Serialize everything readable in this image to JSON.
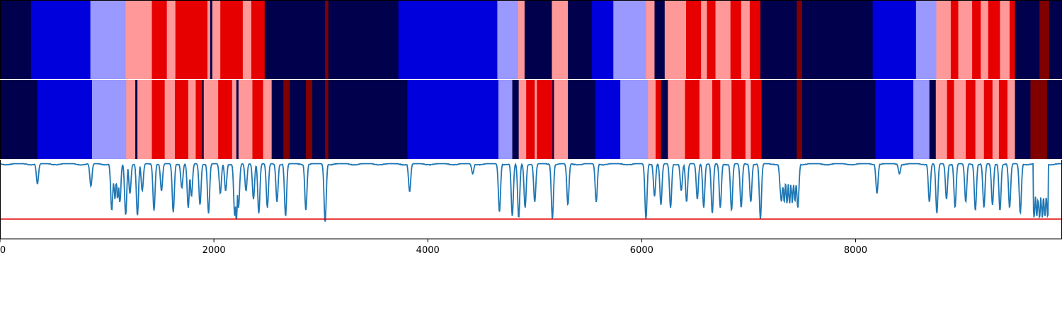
{
  "chart_data": [
    {
      "type": "heatmap",
      "panel": "segment-strip-1",
      "xlim": [
        0,
        9930
      ],
      "color_scale": [
        "#00004d",
        "#0000dd",
        "#9999ff",
        "#ff9999",
        "#e60000",
        "#800000"
      ],
      "segments": [
        [
          0,
          290,
          0
        ],
        [
          290,
          845,
          1
        ],
        [
          845,
          1175,
          2
        ],
        [
          1175,
          1420,
          3
        ],
        [
          1420,
          1560,
          4
        ],
        [
          1560,
          1640,
          3
        ],
        [
          1640,
          1940,
          4
        ],
        [
          1940,
          1965,
          3
        ],
        [
          1965,
          1985,
          0
        ],
        [
          1985,
          2060,
          3
        ],
        [
          2060,
          2270,
          4
        ],
        [
          2270,
          2350,
          3
        ],
        [
          2350,
          2475,
          4
        ],
        [
          2475,
          3040,
          0
        ],
        [
          3040,
          3070,
          5
        ],
        [
          3070,
          3725,
          0
        ],
        [
          3725,
          4650,
          1
        ],
        [
          4650,
          4845,
          2
        ],
        [
          4845,
          4905,
          3
        ],
        [
          4905,
          5160,
          0
        ],
        [
          5160,
          5310,
          3
        ],
        [
          5310,
          5535,
          0
        ],
        [
          5535,
          5735,
          1
        ],
        [
          5735,
          6040,
          2
        ],
        [
          6040,
          6120,
          3
        ],
        [
          6120,
          6215,
          0
        ],
        [
          6215,
          6415,
          3
        ],
        [
          6415,
          6555,
          4
        ],
        [
          6555,
          6610,
          3
        ],
        [
          6610,
          6690,
          4
        ],
        [
          6690,
          6830,
          3
        ],
        [
          6830,
          6930,
          4
        ],
        [
          6930,
          7010,
          3
        ],
        [
          7010,
          7110,
          4
        ],
        [
          7110,
          7450,
          0
        ],
        [
          7450,
          7500,
          5
        ],
        [
          7500,
          8160,
          0
        ],
        [
          8160,
          8565,
          1
        ],
        [
          8565,
          8755,
          2
        ],
        [
          8755,
          8890,
          3
        ],
        [
          8890,
          8960,
          4
        ],
        [
          8960,
          9090,
          3
        ],
        [
          9090,
          9170,
          4
        ],
        [
          9170,
          9240,
          3
        ],
        [
          9240,
          9350,
          4
        ],
        [
          9350,
          9440,
          3
        ],
        [
          9440,
          9490,
          4
        ],
        [
          9490,
          9720,
          0
        ],
        [
          9720,
          9810,
          5
        ],
        [
          9810,
          9930,
          0
        ]
      ]
    },
    {
      "type": "heatmap",
      "panel": "segment-strip-2",
      "xlim": [
        0,
        9930
      ],
      "color_scale": [
        "#00004d",
        "#0000dd",
        "#9999ff",
        "#ff9999",
        "#e60000",
        "#800000"
      ],
      "segments": [
        [
          0,
          350,
          0
        ],
        [
          350,
          860,
          1
        ],
        [
          860,
          1180,
          2
        ],
        [
          1180,
          1265,
          3
        ],
        [
          1265,
          1285,
          0
        ],
        [
          1285,
          1420,
          3
        ],
        [
          1420,
          1540,
          4
        ],
        [
          1540,
          1635,
          3
        ],
        [
          1635,
          1760,
          4
        ],
        [
          1760,
          1830,
          3
        ],
        [
          1830,
          1890,
          4
        ],
        [
          1890,
          1905,
          0
        ],
        [
          1905,
          2040,
          3
        ],
        [
          2040,
          2170,
          4
        ],
        [
          2170,
          2210,
          3
        ],
        [
          2210,
          2230,
          0
        ],
        [
          2230,
          2360,
          3
        ],
        [
          2360,
          2460,
          4
        ],
        [
          2460,
          2540,
          3
        ],
        [
          2540,
          2650,
          0
        ],
        [
          2650,
          2710,
          5
        ],
        [
          2710,
          2860,
          0
        ],
        [
          2860,
          2920,
          5
        ],
        [
          2920,
          3040,
          0
        ],
        [
          3040,
          3070,
          5
        ],
        [
          3070,
          3810,
          0
        ],
        [
          3810,
          4660,
          1
        ],
        [
          4660,
          4790,
          2
        ],
        [
          4790,
          4850,
          0
        ],
        [
          4850,
          4920,
          3
        ],
        [
          4920,
          5000,
          4
        ],
        [
          5000,
          5020,
          3
        ],
        [
          5020,
          5165,
          4
        ],
        [
          5165,
          5180,
          0
        ],
        [
          5180,
          5310,
          3
        ],
        [
          5310,
          5565,
          0
        ],
        [
          5565,
          5800,
          1
        ],
        [
          5800,
          6060,
          2
        ],
        [
          6060,
          6130,
          3
        ],
        [
          6130,
          6180,
          4
        ],
        [
          6180,
          6245,
          0
        ],
        [
          6245,
          6405,
          3
        ],
        [
          6405,
          6540,
          4
        ],
        [
          6540,
          6660,
          3
        ],
        [
          6660,
          6735,
          4
        ],
        [
          6735,
          6840,
          3
        ],
        [
          6840,
          6970,
          4
        ],
        [
          6970,
          7020,
          3
        ],
        [
          7020,
          7120,
          4
        ],
        [
          7120,
          7450,
          0
        ],
        [
          7450,
          7500,
          5
        ],
        [
          7500,
          8185,
          0
        ],
        [
          8185,
          8540,
          1
        ],
        [
          8540,
          8690,
          2
        ],
        [
          8690,
          8750,
          0
        ],
        [
          8750,
          8855,
          3
        ],
        [
          8855,
          8920,
          4
        ],
        [
          8920,
          9030,
          3
        ],
        [
          9030,
          9120,
          4
        ],
        [
          9120,
          9200,
          3
        ],
        [
          9200,
          9280,
          4
        ],
        [
          9280,
          9340,
          3
        ],
        [
          9340,
          9420,
          4
        ],
        [
          9420,
          9490,
          3
        ],
        [
          9490,
          9635,
          0
        ],
        [
          9635,
          9790,
          5
        ],
        [
          9790,
          9930,
          0
        ]
      ]
    },
    {
      "type": "line",
      "panel": "signal-line",
      "xlim": [
        0,
        9930
      ],
      "ylim": [
        -0.35,
        1.05
      ],
      "line_color": "#1f77b4",
      "threshold": {
        "value": 0.0,
        "color": "#e00000"
      },
      "x_ticks": [
        "0",
        "2000",
        "4000",
        "6000",
        "8000"
      ],
      "x_tick_values": [
        0,
        2000,
        4000,
        6000,
        8000
      ],
      "baseline": 0.98,
      "dips": [
        [
          350,
          0.62
        ],
        [
          850,
          0.58
        ],
        [
          1045,
          0.15
        ],
        [
          1120,
          0.3
        ],
        [
          1175,
          0.07
        ],
        [
          1215,
          0.45
        ],
        [
          1285,
          0.06
        ],
        [
          1330,
          0.5
        ],
        [
          1440,
          0.15
        ],
        [
          1510,
          0.5
        ],
        [
          1620,
          0.12
        ],
        [
          1700,
          0.55
        ],
        [
          1760,
          0.2
        ],
        [
          1790,
          0.4
        ],
        [
          1870,
          0.25
        ],
        [
          1950,
          0.1
        ],
        [
          2060,
          0.45
        ],
        [
          2110,
          0.5
        ],
        [
          2195,
          0.05
        ],
        [
          2210,
          -0.02
        ],
        [
          2230,
          0.2
        ],
        [
          2300,
          0.5
        ],
        [
          2370,
          0.35
        ],
        [
          2420,
          0.1
        ],
        [
          2500,
          0.2
        ],
        [
          2590,
          0.3
        ],
        [
          2670,
          0.05
        ],
        [
          2860,
          0.15
        ],
        [
          3040,
          -0.06
        ],
        [
          3830,
          0.48
        ],
        [
          4420,
          0.8
        ],
        [
          4670,
          0.12
        ],
        [
          4790,
          0.05
        ],
        [
          4850,
          0.02
        ],
        [
          4910,
          0.2
        ],
        [
          5000,
          0.3
        ],
        [
          5165,
          0.0
        ],
        [
          5310,
          0.25
        ],
        [
          5575,
          0.3
        ],
        [
          6040,
          0.0
        ],
        [
          6120,
          0.4
        ],
        [
          6180,
          0.25
        ],
        [
          6270,
          0.2
        ],
        [
          6370,
          0.5
        ],
        [
          6420,
          0.3
        ],
        [
          6520,
          0.35
        ],
        [
          6580,
          0.2
        ],
        [
          6660,
          0.1
        ],
        [
          6735,
          0.2
        ],
        [
          6840,
          0.15
        ],
        [
          6930,
          0.2
        ],
        [
          7020,
          0.3
        ],
        [
          7110,
          0.0
        ],
        [
          7300,
          0.45
        ],
        [
          7460,
          0.2
        ],
        [
          8200,
          0.45
        ],
        [
          8410,
          0.8
        ],
        [
          8690,
          0.3
        ],
        [
          8760,
          0.1
        ],
        [
          8850,
          0.35
        ],
        [
          8930,
          0.2
        ],
        [
          9030,
          0.3
        ],
        [
          9120,
          0.15
        ],
        [
          9200,
          0.2
        ],
        [
          9280,
          0.25
        ],
        [
          9350,
          0.15
        ],
        [
          9440,
          0.2
        ],
        [
          9540,
          0.1
        ]
      ],
      "noisy_ranges": [
        [
          1050,
          1130,
          0.45
        ],
        [
          7300,
          7450,
          0.4
        ],
        [
          9660,
          9800,
          0.15
        ]
      ]
    }
  ]
}
